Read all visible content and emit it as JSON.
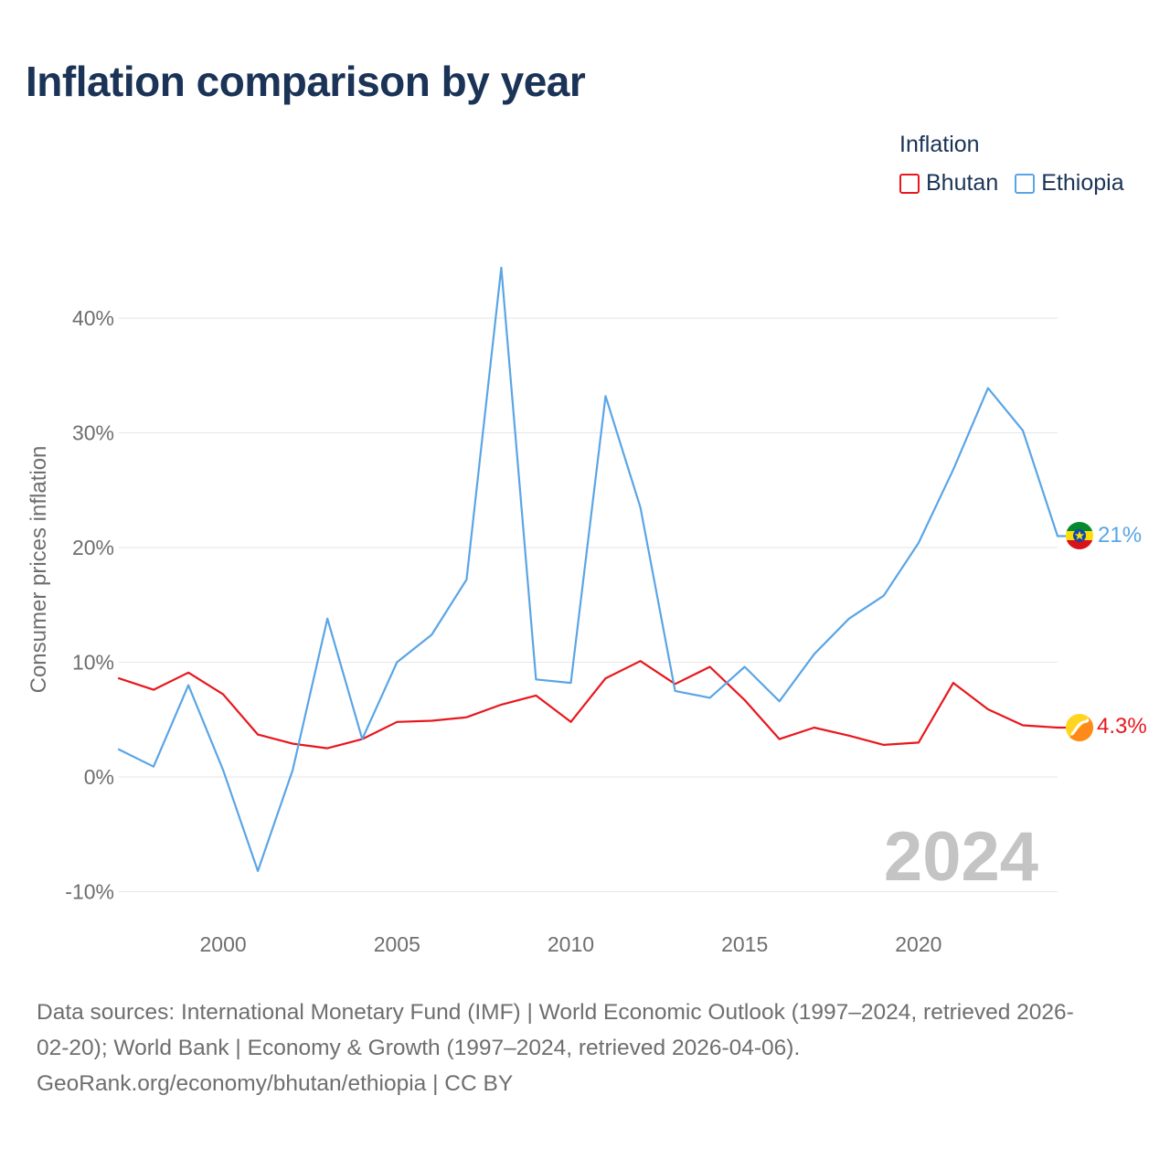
{
  "title": "Inflation comparison by year",
  "legend": {
    "title": "Inflation",
    "items": [
      {
        "name": "Bhutan",
        "color": "#e8171d"
      },
      {
        "name": "Ethiopia",
        "color": "#5aa5e6"
      }
    ]
  },
  "colors": {
    "bhutan": "#e8171d",
    "ethiopia": "#5aa5e6",
    "grid": "#e6e6e6",
    "axis_text": "#6e6e6e",
    "watermark": "#c4c4c4"
  },
  "year_watermark": "2024",
  "end_labels": {
    "bhutan": "4.3%",
    "ethiopia": "21%"
  },
  "footer": {
    "line1": "Data sources: International Monetary Fund (IMF) | World Economic Outlook (1997–2024, retrieved 2026-",
    "line2": "02-20); World Bank | Economy & Growth (1997–2024, retrieved 2026-04-06).",
    "line3": "GeoRank.org/economy/bhutan/ethiopia | CC BY"
  },
  "chart_data": {
    "type": "line",
    "title": "Inflation comparison by year",
    "xlabel": "",
    "ylabel": "Consumer prices inflation",
    "xlim": [
      1997,
      2024
    ],
    "ylim": [
      -10,
      45
    ],
    "x_ticks": [
      2000,
      2005,
      2010,
      2015,
      2020
    ],
    "y_ticks": [
      -10,
      0,
      10,
      20,
      30,
      40
    ],
    "y_tick_labels": [
      "-10%",
      "0%",
      "10%",
      "20%",
      "30%",
      "40%"
    ],
    "grid": true,
    "legend_position": "top-right",
    "x": [
      1997,
      1998,
      1999,
      2000,
      2001,
      2002,
      2003,
      2004,
      2005,
      2006,
      2007,
      2008,
      2009,
      2010,
      2011,
      2012,
      2013,
      2014,
      2015,
      2016,
      2017,
      2018,
      2019,
      2020,
      2021,
      2022,
      2023,
      2024
    ],
    "series": [
      {
        "name": "Bhutan",
        "values": [
          8.6,
          7.6,
          9.1,
          7.2,
          3.7,
          2.9,
          2.5,
          3.3,
          4.8,
          4.9,
          5.2,
          6.3,
          7.1,
          4.8,
          8.6,
          10.1,
          8.1,
          9.6,
          6.7,
          3.3,
          4.3,
          3.6,
          2.8,
          3.0,
          8.2,
          5.9,
          4.5,
          4.3
        ]
      },
      {
        "name": "Ethiopia",
        "values": [
          2.4,
          0.9,
          8.0,
          0.6,
          -8.2,
          0.6,
          13.8,
          3.3,
          10.0,
          12.4,
          17.2,
          44.4,
          8.5,
          8.2,
          33.2,
          23.5,
          7.5,
          6.9,
          9.6,
          6.6,
          10.7,
          13.8,
          15.8,
          20.4,
          26.8,
          33.9,
          30.2,
          21.0
        ]
      }
    ]
  }
}
